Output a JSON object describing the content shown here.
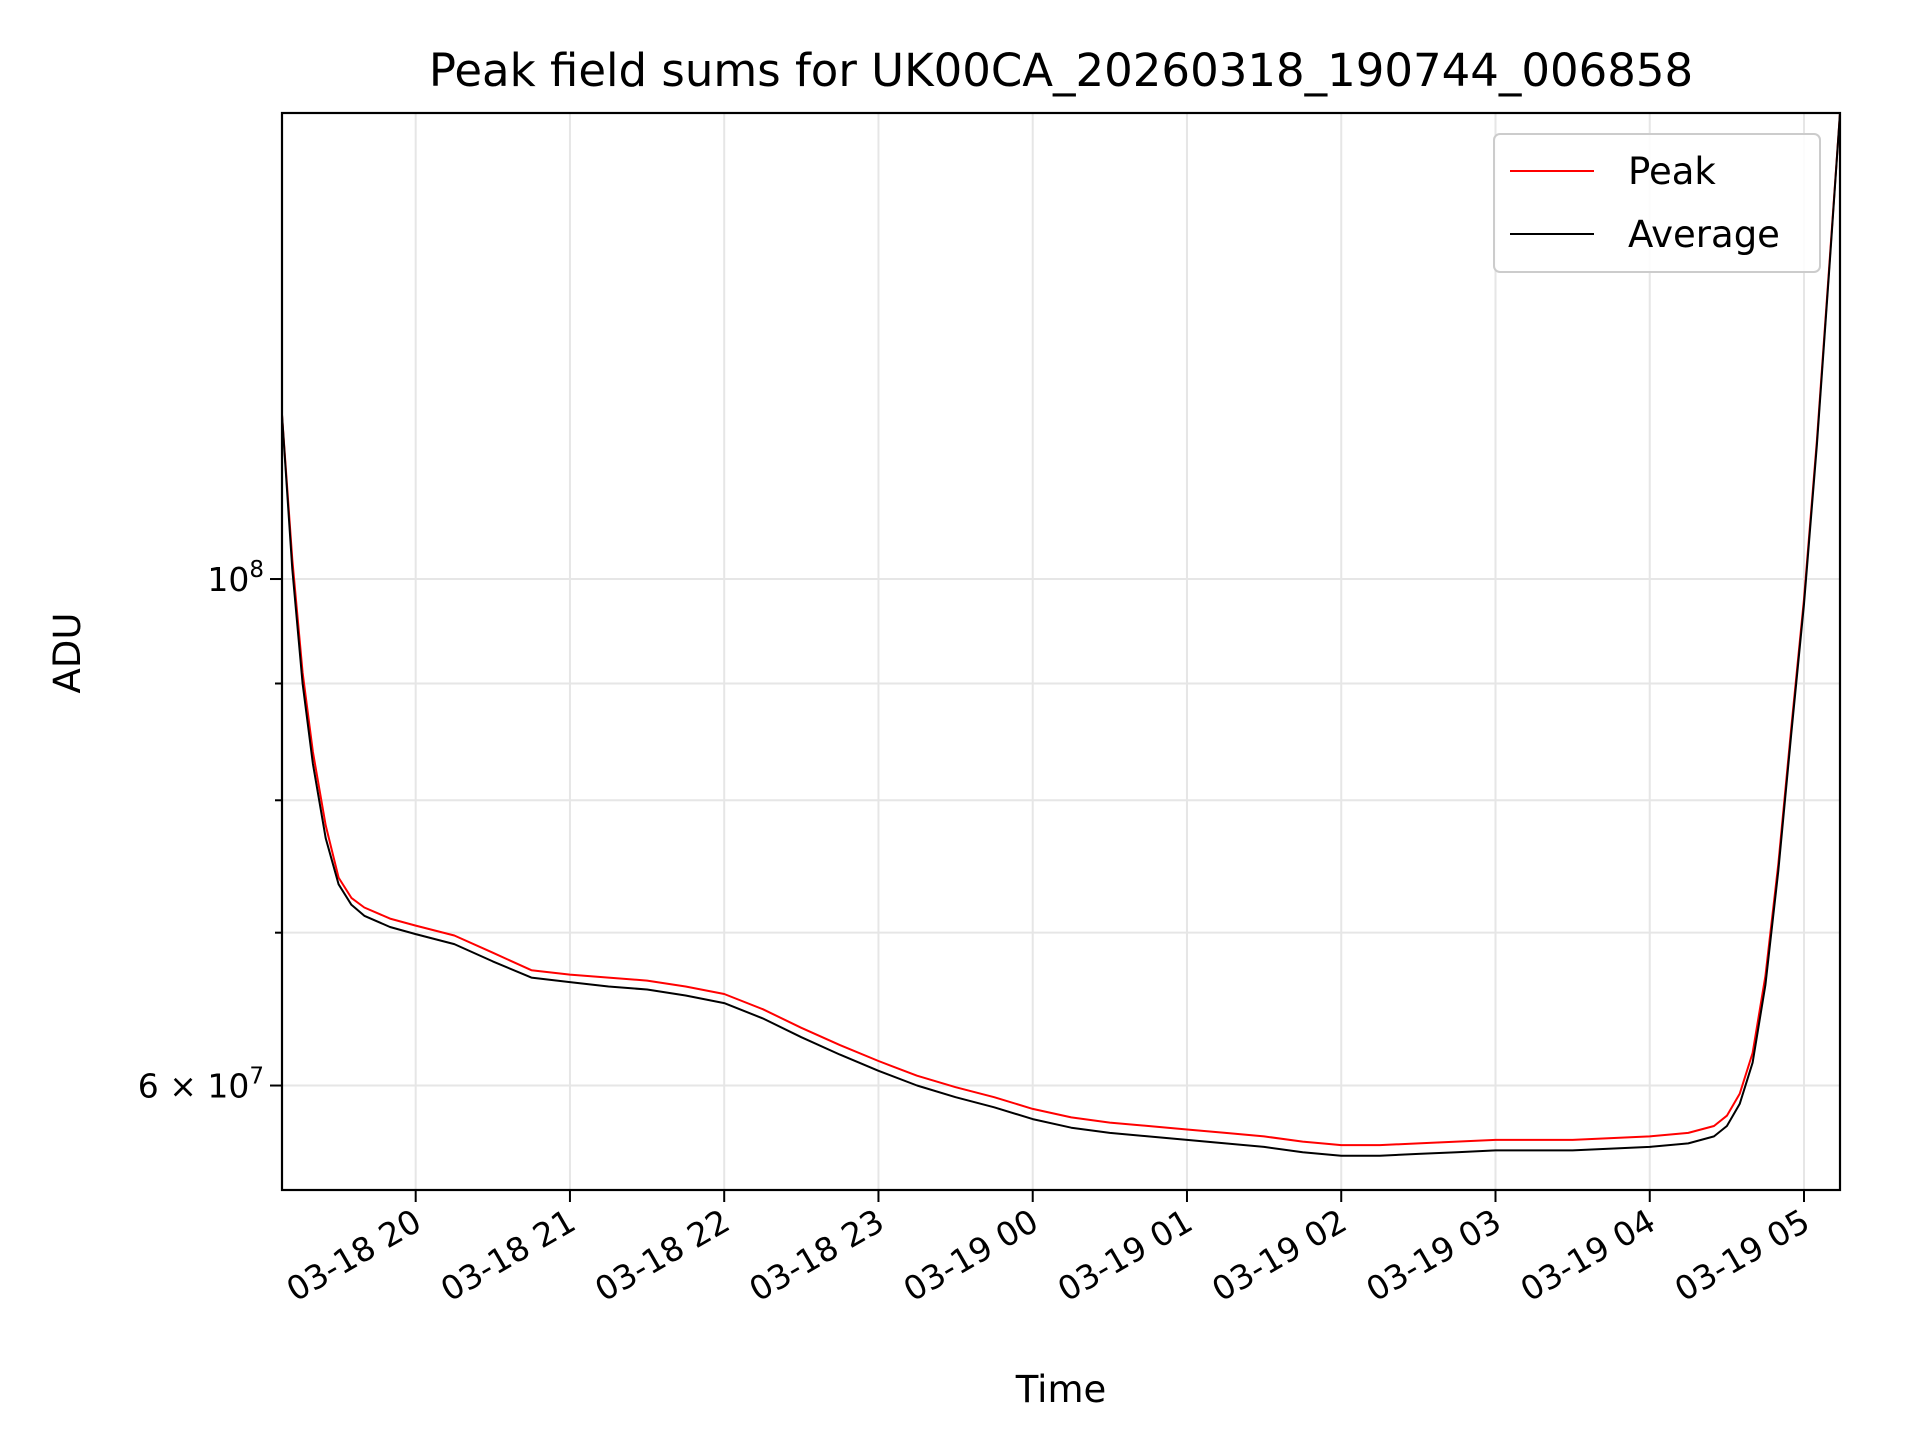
{
  "chart_data": {
    "type": "line",
    "title": "Peak field sums for UK00CA_20260318_190744_006858",
    "xlabel": "Time",
    "ylabel": "ADU",
    "y_scale": "log",
    "xlim": [
      "03-18 19:08",
      "03-19 05:14"
    ],
    "ylim": [
      54000000,
      160000000
    ],
    "x_ticks": [
      "03-18 20",
      "03-18 21",
      "03-18 22",
      "03-18 23",
      "03-19 00",
      "03-19 01",
      "03-19 02",
      "03-19 03",
      "03-19 04",
      "03-19 05"
    ],
    "y_ticks": [
      {
        "value": 100000000,
        "mantissa": "",
        "base": "10",
        "exp": "8"
      },
      {
        "value": 60000000,
        "mantissa": "6",
        "base": "10",
        "exp": "7"
      }
    ],
    "y_minor_ticks": [
      70000000,
      80000000,
      90000000
    ],
    "grid": true,
    "legend_position": "top-right",
    "series": [
      {
        "name": "Peak",
        "color": "#ff0000",
        "x": [
          "03-18 19:08",
          "03-18 19:12",
          "03-18 19:16",
          "03-18 19:20",
          "03-18 19:25",
          "03-18 19:30",
          "03-18 19:35",
          "03-18 19:40",
          "03-18 19:50",
          "03-18 20:00",
          "03-18 20:15",
          "03-18 20:30",
          "03-18 20:45",
          "03-18 21:00",
          "03-18 21:15",
          "03-18 21:30",
          "03-18 21:45",
          "03-18 22:00",
          "03-18 22:15",
          "03-18 22:30",
          "03-18 22:45",
          "03-18 23:00",
          "03-18 23:15",
          "03-18 23:30",
          "03-18 23:45",
          "03-19 00:00",
          "03-19 00:15",
          "03-19 00:30",
          "03-19 00:45",
          "03-19 01:00",
          "03-19 01:15",
          "03-19 01:30",
          "03-19 01:45",
          "03-19 02:00",
          "03-19 02:15",
          "03-19 02:30",
          "03-19 02:45",
          "03-19 03:00",
          "03-19 03:15",
          "03-19 03:30",
          "03-19 03:45",
          "03-19 04:00",
          "03-19 04:15",
          "03-19 04:25",
          "03-19 04:30",
          "03-19 04:35",
          "03-19 04:40",
          "03-19 04:45",
          "03-19 04:50",
          "03-19 04:55",
          "03-19 05:00",
          "03-19 05:05",
          "03-19 05:10",
          "03-19 05:14"
        ],
        "values": [
          118000000,
          102000000,
          91000000,
          84000000,
          78000000,
          74000000,
          72500000,
          71800000,
          71000000,
          70500000,
          69800000,
          68600000,
          67400000,
          67100000,
          66900000,
          66700000,
          66300000,
          65800000,
          64800000,
          63600000,
          62500000,
          61500000,
          60600000,
          59900000,
          59300000,
          58600000,
          58100000,
          57800000,
          57600000,
          57400000,
          57200000,
          57000000,
          56700000,
          56500000,
          56500000,
          56600000,
          56700000,
          56800000,
          56800000,
          56800000,
          56900000,
          57000000,
          57200000,
          57600000,
          58200000,
          59500000,
          62000000,
          67000000,
          75000000,
          86000000,
          98000000,
          115000000,
          138000000,
          160000000
        ]
      },
      {
        "name": "Average",
        "color": "#000000",
        "x": [
          "03-18 19:08",
          "03-18 19:12",
          "03-18 19:16",
          "03-18 19:20",
          "03-18 19:25",
          "03-18 19:30",
          "03-18 19:35",
          "03-18 19:40",
          "03-18 19:50",
          "03-18 20:00",
          "03-18 20:15",
          "03-18 20:30",
          "03-18 20:45",
          "03-18 21:00",
          "03-18 21:15",
          "03-18 21:30",
          "03-18 21:45",
          "03-18 22:00",
          "03-18 22:15",
          "03-18 22:30",
          "03-18 22:45",
          "03-18 23:00",
          "03-18 23:15",
          "03-18 23:30",
          "03-18 23:45",
          "03-19 00:00",
          "03-19 00:15",
          "03-19 00:30",
          "03-19 00:45",
          "03-19 01:00",
          "03-19 01:15",
          "03-19 01:30",
          "03-19 01:45",
          "03-19 02:00",
          "03-19 02:15",
          "03-19 02:30",
          "03-19 02:45",
          "03-19 03:00",
          "03-19 03:15",
          "03-19 03:30",
          "03-19 03:45",
          "03-19 04:00",
          "03-19 04:15",
          "03-19 04:25",
          "03-19 04:30",
          "03-19 04:35",
          "03-19 04:40",
          "03-19 04:45",
          "03-19 04:50",
          "03-19 04:55",
          "03-19 05:00",
          "03-19 05:05",
          "03-19 05:10",
          "03-19 05:14"
        ],
        "values": [
          118000000,
          101000000,
          90000000,
          83000000,
          77000000,
          73500000,
          72000000,
          71200000,
          70400000,
          69900000,
          69200000,
          68000000,
          66900000,
          66600000,
          66300000,
          66100000,
          65700000,
          65200000,
          64200000,
          63000000,
          61900000,
          60900000,
          60000000,
          59300000,
          58700000,
          58000000,
          57500000,
          57200000,
          57000000,
          56800000,
          56600000,
          56400000,
          56100000,
          55900000,
          55900000,
          56000000,
          56100000,
          56200000,
          56200000,
          56200000,
          56300000,
          56400000,
          56600000,
          57000000,
          57600000,
          58900000,
          61400000,
          66400000,
          74500000,
          85500000,
          97500000,
          114500000,
          137500000,
          160000000
        ]
      }
    ]
  }
}
